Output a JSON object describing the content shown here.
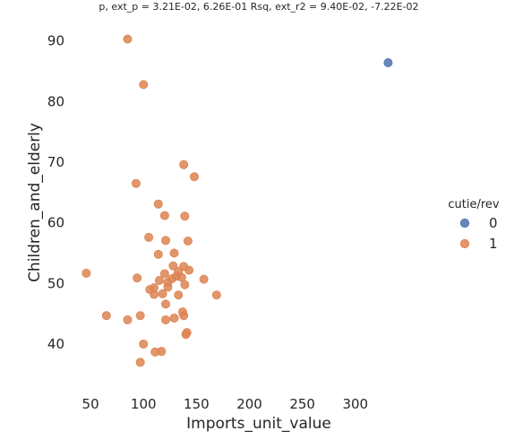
{
  "chart_data": {
    "type": "scatter",
    "title": "p, ext_p = 3.21E-02, 6.26E-01 Rsq, ext_r2 = 9.40E-02, -7.22E-02",
    "xlabel": "Imports_unit_value",
    "ylabel": "Children_and_elderly",
    "xlim": [
      33,
      345
    ],
    "ylim": [
      33.8,
      93.2
    ],
    "xticks": [
      50,
      100,
      150,
      200,
      250,
      300
    ],
    "yticks": [
      40,
      50,
      60,
      70,
      80,
      90
    ],
    "grid": false,
    "legend": {
      "title": "cutie/rev",
      "placement": "right",
      "entries": [
        {
          "label": "0",
          "color": "#4c72b0"
        },
        {
          "label": "1",
          "color": "#dd8452"
        }
      ]
    },
    "series": [
      {
        "name": "0",
        "color": "#4c72b0",
        "points": [
          [
            331,
            86.4
          ]
        ]
      },
      {
        "name": "1",
        "color": "#dd8452",
        "points": [
          [
            85,
            90.3
          ],
          [
            100,
            82.8
          ],
          [
            138,
            69.6
          ],
          [
            148,
            67.6
          ],
          [
            93,
            66.5
          ],
          [
            114,
            63.1
          ],
          [
            120,
            61.2
          ],
          [
            139,
            61.1
          ],
          [
            105,
            57.6
          ],
          [
            121,
            57.1
          ],
          [
            142,
            57.0
          ],
          [
            114,
            54.8
          ],
          [
            129,
            55.0
          ],
          [
            46,
            51.7
          ],
          [
            138,
            52.8
          ],
          [
            128,
            52.9
          ],
          [
            143,
            52.2
          ],
          [
            133,
            52.0
          ],
          [
            120,
            51.6
          ],
          [
            94,
            50.9
          ],
          [
            131,
            51.2
          ],
          [
            136,
            51.0
          ],
          [
            127,
            50.8
          ],
          [
            115,
            50.5
          ],
          [
            123,
            50.2
          ],
          [
            157,
            50.7
          ],
          [
            139,
            49.8
          ],
          [
            110,
            49.3
          ],
          [
            106,
            49.0
          ],
          [
            123,
            49.4
          ],
          [
            110,
            48.2
          ],
          [
            118,
            48.3
          ],
          [
            133,
            48.1
          ],
          [
            169,
            48.1
          ],
          [
            121,
            46.6
          ],
          [
            137,
            45.3
          ],
          [
            65,
            44.7
          ],
          [
            97,
            44.7
          ],
          [
            138,
            44.7
          ],
          [
            129,
            44.3
          ],
          [
            121,
            44.0
          ],
          [
            85,
            44.0
          ],
          [
            141,
            41.9
          ],
          [
            140,
            41.6
          ],
          [
            100,
            40.0
          ],
          [
            117,
            38.8
          ],
          [
            111,
            38.7
          ],
          [
            97,
            37.0
          ]
        ]
      }
    ]
  }
}
